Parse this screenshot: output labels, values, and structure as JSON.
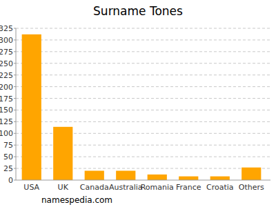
{
  "chart_data": {
    "type": "bar",
    "title": "Surname Tones",
    "categories": [
      "USA",
      "UK",
      "Canada",
      "Australia",
      "Romania",
      "France",
      "Croatia",
      "Others"
    ],
    "values": [
      312,
      114,
      20,
      20,
      12,
      8,
      8,
      27
    ],
    "color": "#ffa500",
    "ylim": [
      0,
      325
    ],
    "yticks": [
      0,
      25,
      50,
      75,
      100,
      125,
      150,
      175,
      200,
      225,
      250,
      275,
      300,
      325
    ],
    "grid": true,
    "annotations": [
      "namespedia.com"
    ]
  }
}
